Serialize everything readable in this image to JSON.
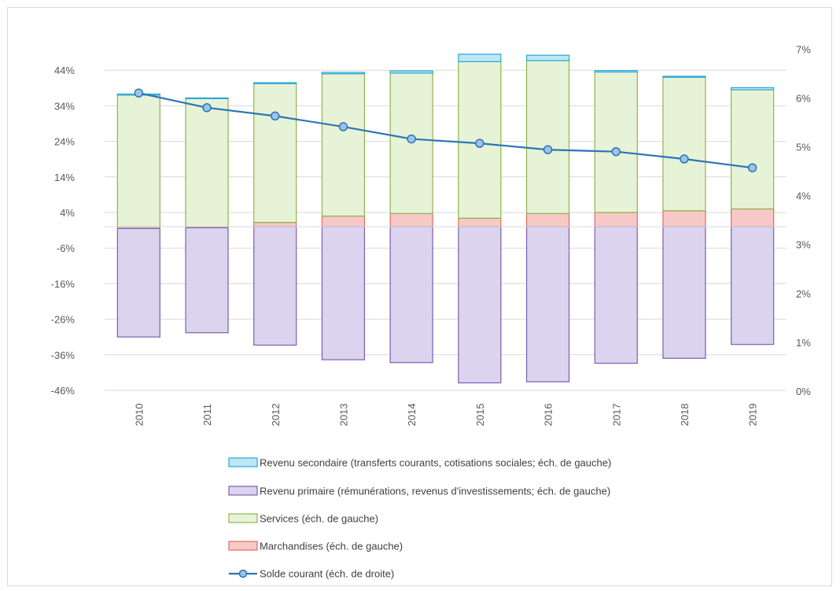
{
  "chart_data": {
    "type": "bar",
    "stacked": true,
    "categories": [
      "2010",
      "2011",
      "2012",
      "2013",
      "2014",
      "2015",
      "2016",
      "2017",
      "2018",
      "2019"
    ],
    "y_left": {
      "ylim": [
        -46,
        50
      ],
      "ticks": [
        -46,
        -36,
        -26,
        -16,
        -6,
        4,
        14,
        24,
        34,
        44
      ],
      "tick_labels": [
        "-46%",
        "-36%",
        "-26%",
        "-16%",
        "-6%",
        "4%",
        "14%",
        "24%",
        "34%",
        "44%"
      ]
    },
    "y_right": {
      "ylim": [
        0,
        7
      ],
      "ticks": [
        0,
        1,
        2,
        3,
        4,
        5,
        6,
        7
      ],
      "tick_labels": [
        "0%",
        "1%",
        "2%",
        "3%",
        "4%",
        "5%",
        "6%",
        "7%"
      ]
    },
    "series": [
      {
        "name": "Revenu secondaire (transferts courants, cotisations sociales; éch. de gauche)",
        "axis": "left",
        "kind": "bar",
        "color": "#bde7f5",
        "border": "#29a8d6",
        "values": [
          0.3,
          0.2,
          0.3,
          0.4,
          0.6,
          2.1,
          1.5,
          0.4,
          0.3,
          0.6
        ]
      },
      {
        "name": "Revenu primaire (rémunérations, revenus d'investissements; éch. de gauche)",
        "axis": "left",
        "kind": "bar",
        "color": "#dcd3ee",
        "border": "#7a5fb1",
        "values": [
          -30.5,
          -29.5,
          -33.3,
          -37.4,
          -38.2,
          -43.9,
          -43.6,
          -38.4,
          -37.0,
          -33.1
        ]
      },
      {
        "name": "Services (éch. de gauche)",
        "axis": "left",
        "kind": "bar",
        "color": "#e7f3d7",
        "border": "#8fb34f",
        "values": [
          37.0,
          36.0,
          39.0,
          40.0,
          39.5,
          44.0,
          43.0,
          39.5,
          37.5,
          33.5
        ]
      },
      {
        "name": "Marchandises (éch. de gauche)",
        "axis": "left",
        "kind": "bar",
        "color": "#f7c9c6",
        "border": "#e06c66",
        "values": [
          -0.5,
          -0.3,
          1.2,
          3.0,
          3.7,
          2.4,
          3.7,
          4.0,
          4.5,
          5.0
        ]
      },
      {
        "name": "Solde courant (éch. de droite)",
        "axis": "right",
        "kind": "line",
        "color": "#2e75b6",
        "marker_fill": "#9dc3e6",
        "values": [
          6.1,
          5.8,
          5.63,
          5.41,
          5.16,
          5.07,
          4.94,
          4.9,
          4.75,
          4.57
        ]
      }
    ],
    "legend_position": "bottom",
    "grid": true
  }
}
